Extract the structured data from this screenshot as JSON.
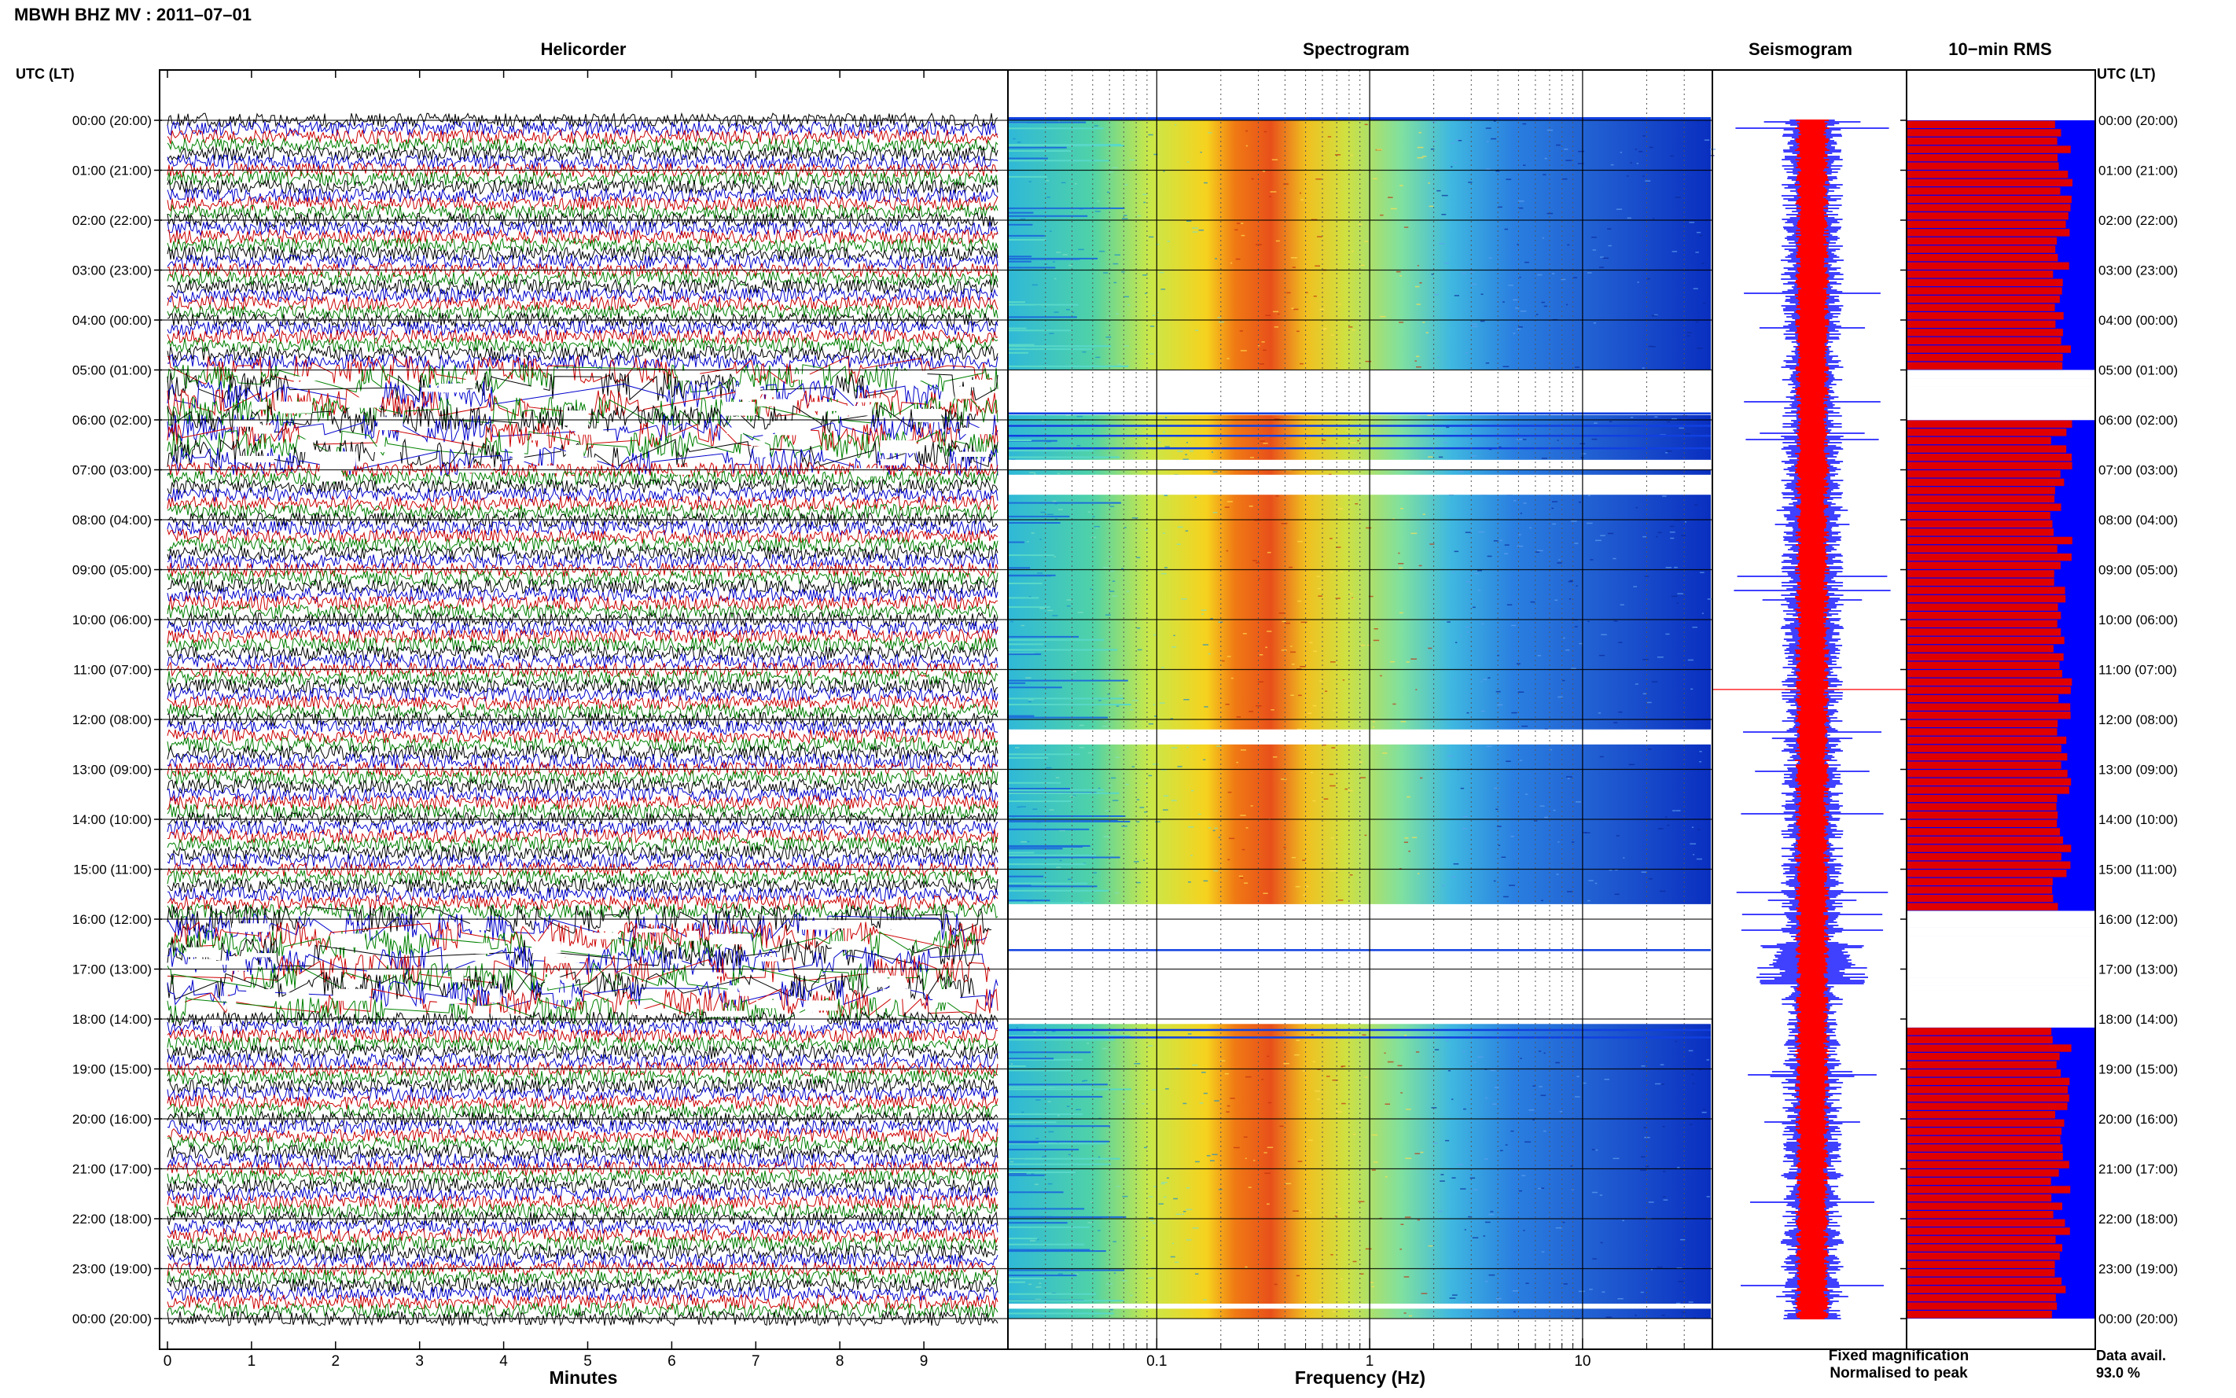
{
  "header": {
    "title": "MBWH BHZ MV : 2011–07–01"
  },
  "panels": {
    "helicorder": "Helicorder",
    "spectrogram": "Spectrogram",
    "seismogram": "Seismogram",
    "rms": "10−min RMS"
  },
  "axis_labels": {
    "utc_left": "UTC (LT)",
    "utc_right": "UTC (LT)",
    "minutes": "Minutes",
    "frequency": "Frequency (Hz)"
  },
  "legend": {
    "fixed": "Fixed magnification",
    "fixed_color": "#0000ff",
    "normalised": "Normalised to peak",
    "normalised_color": "#ff0000"
  },
  "availability": {
    "label": "Data avail.",
    "value": "93.0 %"
  },
  "colors": {
    "trace_cycle": [
      "#000000",
      "#0000cc",
      "#cc0000",
      "#008000"
    ],
    "rms_bar": "#e00000",
    "rms_fill": "#0000ff",
    "seis_fixed": "#0000ff",
    "seis_norm": "#ff0000"
  },
  "chart_data": [
    {
      "type": "line",
      "panel": "Helicorder",
      "xlabel": "Minutes",
      "xlim": [
        0,
        10
      ],
      "xticks": [
        "0",
        "1",
        "2",
        "3",
        "4",
        "5",
        "6",
        "7",
        "8",
        "9"
      ],
      "y_tick_labels": [
        "00:00 (20:00)",
        "01:00 (21:00)",
        "02:00 (22:00)",
        "03:00 (23:00)",
        "04:00 (00:00)",
        "05:00 (01:00)",
        "06:00 (02:00)",
        "07:00 (03:00)",
        "08:00 (04:00)",
        "09:00 (05:00)",
        "10:00 (06:00)",
        "11:00 (07:00)",
        "12:00 (08:00)",
        "13:00 (09:00)",
        "14:00 (10:00)",
        "15:00 (11:00)",
        "16:00 (12:00)",
        "17:00 (13:00)",
        "18:00 (14:00)",
        "19:00 (15:00)",
        "20:00 (16:00)",
        "21:00 (17:00)",
        "22:00 (18:00)",
        "23:00 (19:00)",
        "00:00 (20:00)"
      ],
      "lines_per_hour": 6,
      "disturbed_hours": [
        5,
        6,
        16,
        17
      ]
    },
    {
      "type": "heatmap",
      "panel": "Spectrogram",
      "xlabel": "Frequency (Hz)",
      "xscale": "log",
      "xlim": [
        0.02,
        40
      ],
      "xticks": [
        0.1,
        1,
        10
      ],
      "xtick_labels": [
        "0.1",
        "1",
        "10"
      ],
      "peak_band_hz": [
        0.2,
        0.4
      ],
      "gap_hours": [
        [
          5.0,
          5.9
        ],
        [
          6.8,
          7.0
        ],
        [
          7.1,
          7.5
        ],
        [
          12.2,
          12.5
        ],
        [
          15.7,
          18.1
        ],
        [
          23.7,
          23.8
        ]
      ]
    },
    {
      "type": "line",
      "panel": "Seismogram",
      "series": [
        {
          "name": "Fixed magnification"
        },
        {
          "name": "Normalised to peak"
        }
      ]
    },
    {
      "type": "bar",
      "panel": "10−min RMS",
      "orientation": "horizontal",
      "bins": 144,
      "xlim": [
        0,
        1
      ],
      "level_normalised": 0.82,
      "gap_hours": [
        [
          5.0,
          5.9
        ],
        [
          15.7,
          18.1
        ]
      ]
    }
  ]
}
